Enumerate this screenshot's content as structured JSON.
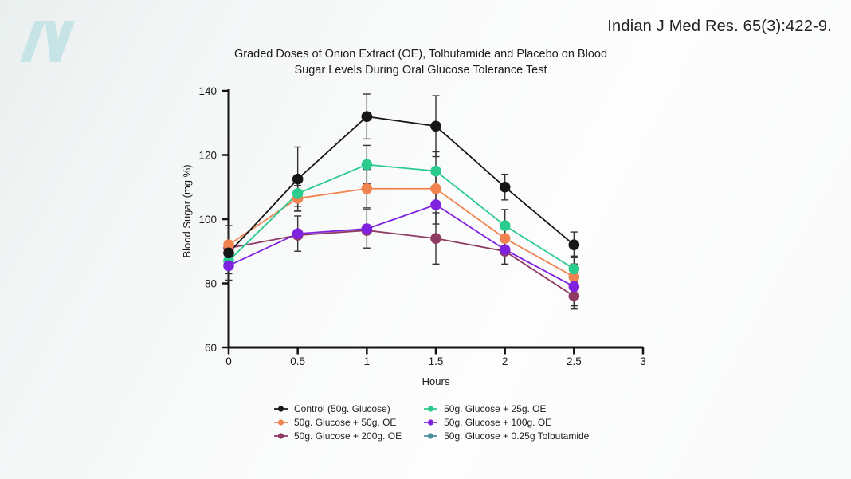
{
  "page": {
    "citation": "Indian J Med Res. 65(3):422-9.",
    "logo": "nutritionfacts-n-logo",
    "logo_color": "#c6e4e6",
    "text_color": "#1c1c1c",
    "axis_color": "#121212",
    "errorbar_color": "#333333"
  },
  "chart_data": {
    "type": "line",
    "title": "Graded Doses of Onion Extract (OE), Tolbutamide and Placebo on Blood Sugar Levels During Oral Glucose Tolerance Test",
    "xlabel": "Hours",
    "ylabel": "Blood Sugar (mg %)",
    "xlim": [
      0,
      3
    ],
    "ylim": [
      60,
      140
    ],
    "xticks": [
      "0",
      "0.5",
      "1",
      "1.5",
      "2",
      "2.5",
      "3"
    ],
    "xtick_values": [
      0,
      0.5,
      1,
      1.5,
      2,
      2.5,
      3
    ],
    "yticks": [
      "60",
      "80",
      "100",
      "120",
      "140"
    ],
    "ytick_values": [
      60,
      80,
      100,
      120,
      140
    ],
    "grid": false,
    "x": [
      0,
      0.5,
      1,
      1.5,
      2,
      2.5
    ],
    "series": [
      {
        "name": "Control (50g. Glucose)",
        "color": "#161616",
        "values": [
          89.5,
          112.5,
          132,
          129,
          110,
          92
        ],
        "errors": [
          2,
          10,
          7,
          9.5,
          4,
          4
        ]
      },
      {
        "name": "50g. Glucose + 50g. OE",
        "color": "#f0834f",
        "values": [
          92,
          106.5,
          109.5,
          109.5,
          94,
          82
        ],
        "errors": [
          6,
          4,
          6,
          6,
          5,
          4
        ]
      },
      {
        "name": "50g. Glucose + 200g. OE",
        "color": "#8e3a63",
        "values": [
          91,
          95,
          96.5,
          94,
          90,
          76
        ],
        "errors": [
          0,
          0,
          0,
          8,
          0,
          3
        ]
      },
      {
        "name": "50g. Glucose + 25g. OE",
        "color": "#2bcb8e",
        "values": [
          87,
          108,
          117,
          115,
          98,
          84.5
        ],
        "errors": [
          4,
          4,
          6,
          6,
          5,
          4
        ]
      },
      {
        "name": "50g. Glucose + 100g. OE",
        "color": "#7f22e0",
        "values": [
          85.5,
          95.5,
          97,
          104.5,
          90.5,
          79
        ],
        "errors": [
          4.5,
          5.5,
          6,
          6,
          4.5,
          7
        ]
      },
      {
        "name": "50g. Glucose + 0.25g Tolbutamide",
        "color": "#4d8d9c",
        "values": null,
        "errors": null
      }
    ],
    "legend": {
      "position": "bottom",
      "columns": [
        [
          0,
          1,
          2
        ],
        [
          3,
          4,
          5
        ]
      ]
    }
  }
}
